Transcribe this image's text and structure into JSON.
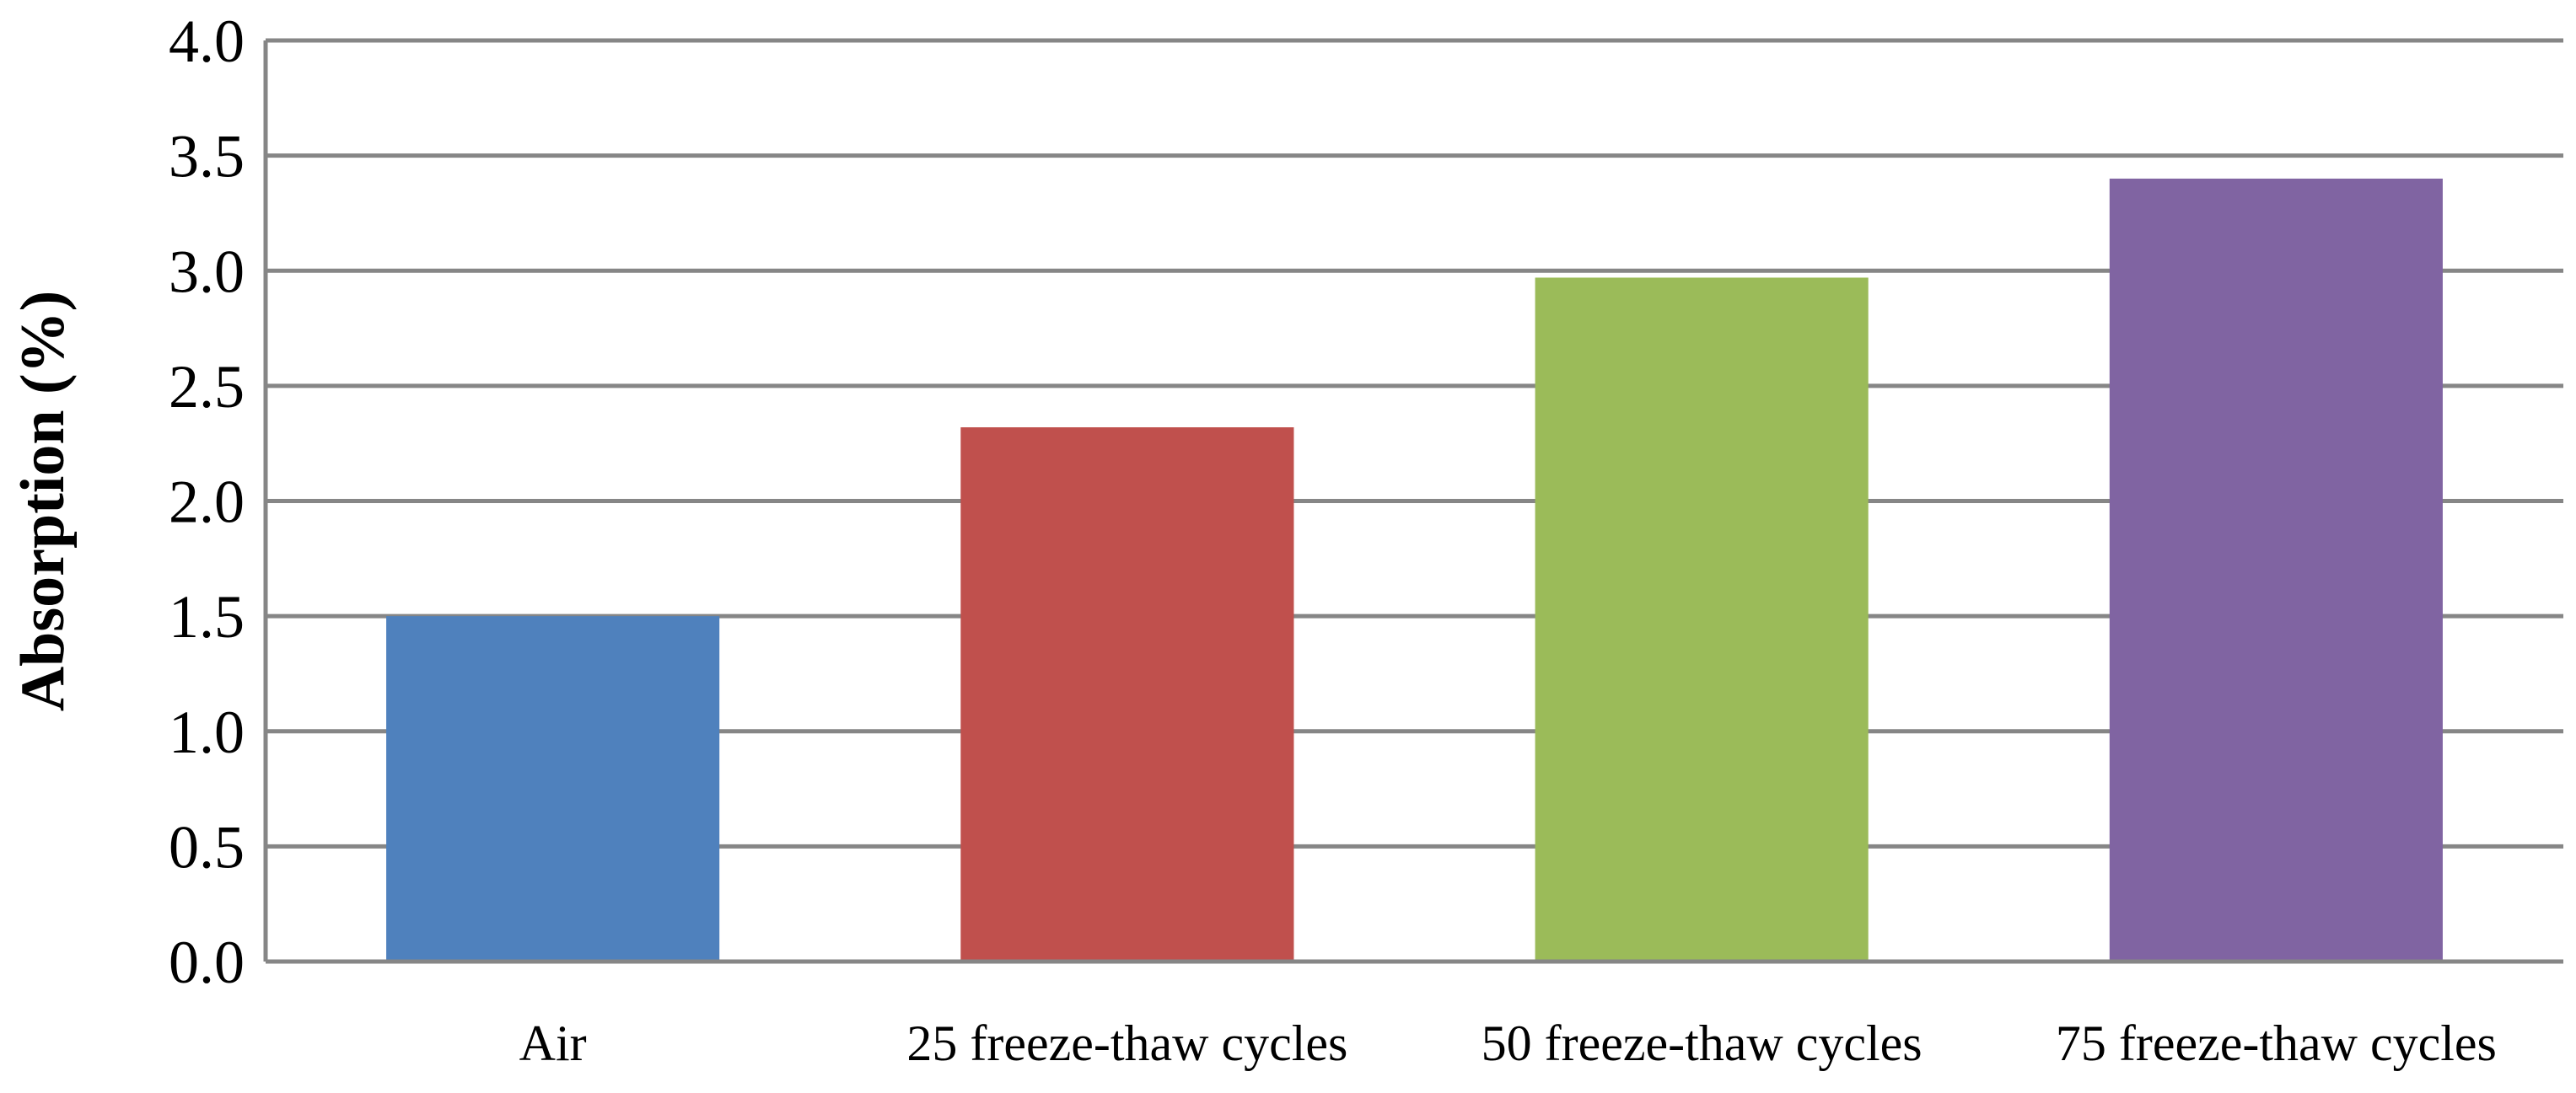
{
  "chart_data": {
    "type": "bar",
    "title": "",
    "xlabel": "",
    "ylabel": "Absorption (%)",
    "ylim": [
      0,
      4.0
    ],
    "ytick_step": 0.5,
    "ytick_labels": [
      "0.0",
      "0.5",
      "1.0",
      "1.5",
      "2.0",
      "2.5",
      "3.0",
      "3.5",
      "4.0"
    ],
    "categories": [
      "Air",
      "25 freeze-thaw cycles",
      "50 freeze-thaw cycles",
      "75 freeze-thaw cycles"
    ],
    "values": [
      1.5,
      2.32,
      2.97,
      3.4
    ],
    "colors": [
      "#4F81BD",
      "#C0504D",
      "#9BBB59",
      "#8064A2"
    ],
    "grid": true,
    "legend": "none"
  }
}
